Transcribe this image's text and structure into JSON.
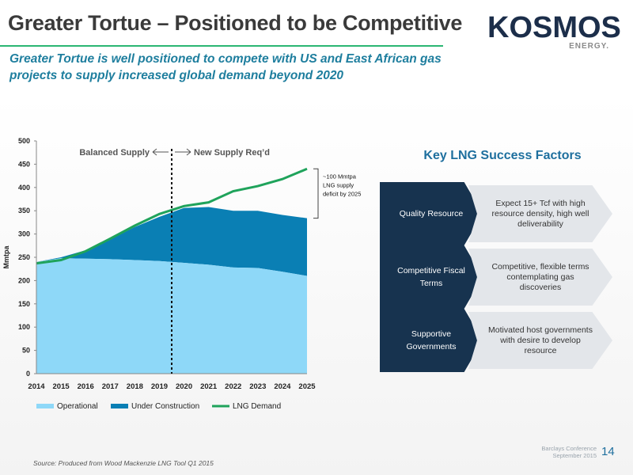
{
  "header": {
    "title": "Greater Tortue – Positioned to be Competitive",
    "subtitle": "Greater Tortue is well positioned to compete with US and East African gas projects to supply increased global demand beyond 2020",
    "logo_text": "KOSMOS",
    "logo_sub": "ENERGY."
  },
  "chart_data": {
    "type": "area",
    "title": "",
    "xlabel": "",
    "ylabel": "Mmtpa",
    "x": [
      2014,
      2015,
      2016,
      2017,
      2018,
      2019,
      2020,
      2021,
      2022,
      2023,
      2024,
      2025
    ],
    "ylim": [
      0,
      500
    ],
    "yticks": [
      0,
      50,
      100,
      150,
      200,
      250,
      300,
      350,
      400,
      450,
      500
    ],
    "grid": false,
    "legend_position": "bottom",
    "series": [
      {
        "name": "Operational",
        "kind": "area-stacked",
        "color": "#8ed8f8",
        "values": [
          240,
          248,
          247,
          246,
          244,
          242,
          238,
          234,
          228,
          227,
          219,
          210
        ]
      },
      {
        "name": "Under Construction",
        "kind": "area-stacked",
        "color": "#0a7fb4",
        "values": [
          0,
          2,
          18,
          42,
          71,
          95,
          118,
          124,
          122,
          123,
          122,
          124
        ]
      },
      {
        "name": "LNG Demand",
        "kind": "line",
        "color": "#1fa35b",
        "values": [
          237,
          244,
          263,
          290,
          318,
          343,
          360,
          368,
          392,
          403,
          418,
          440
        ]
      }
    ],
    "divider_x": 2019.5,
    "annotations": {
      "balanced": "Balanced Supply",
      "new_supply": "New Supply Req’d",
      "deficit_line1": "~100 Mmtpa",
      "deficit_line2": "LNG supply",
      "deficit_line3": "deficit by 2025"
    }
  },
  "success_factors": {
    "title": "Key LNG Success Factors",
    "rows": [
      {
        "label": "Quality Resource",
        "detail": "Expect 15+ Tcf with high resource density, high well deliverability"
      },
      {
        "label": "Competitive Fiscal Terms",
        "detail": "Competitive, flexible terms contemplating gas discoveries"
      },
      {
        "label": "Supportive Governments",
        "detail": "Motivated host governments with desire to develop resource"
      }
    ]
  },
  "footer": {
    "source": "Source: Produced from Wood Mackenzie LNG Tool Q1 2015",
    "conference_line1": "Barclays Conference",
    "conference_line2": "September 2015",
    "page_number": "14"
  },
  "colors": {
    "accent_green": "#2bb673",
    "navy": "#17334f",
    "blue_text": "#1e7e9e"
  }
}
